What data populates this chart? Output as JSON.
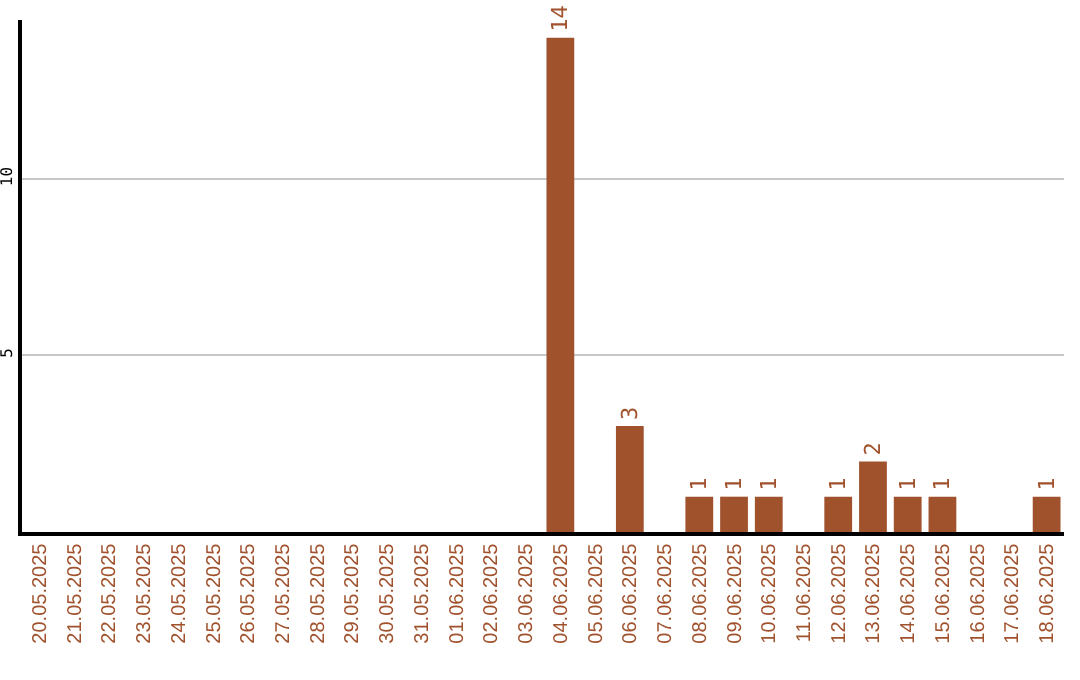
{
  "chart_data": {
    "type": "bar",
    "categories": [
      "20.05.2025",
      "21.05.2025",
      "22.05.2025",
      "23.05.2025",
      "24.05.2025",
      "25.05.2025",
      "26.05.2025",
      "27.05.2025",
      "28.05.2025",
      "29.05.2025",
      "30.05.2025",
      "31.05.2025",
      "01.06.2025",
      "02.06.2025",
      "03.06.2025",
      "04.06.2025",
      "05.06.2025",
      "06.06.2025",
      "07.06.2025",
      "08.06.2025",
      "09.06.2025",
      "10.06.2025",
      "11.06.2025",
      "12.06.2025",
      "13.06.2025",
      "14.06.2025",
      "15.06.2025",
      "16.06.2025",
      "17.06.2025",
      "18.06.2025"
    ],
    "values": [
      0,
      0,
      0,
      0,
      0,
      0,
      0,
      0,
      0,
      0,
      0,
      0,
      0,
      0,
      0,
      14,
      0,
      3,
      0,
      1,
      1,
      1,
      0,
      1,
      2,
      1,
      1,
      0,
      0,
      1
    ],
    "value_labels": [
      null,
      null,
      null,
      null,
      null,
      null,
      null,
      null,
      null,
      null,
      null,
      null,
      null,
      null,
      null,
      "14",
      null,
      "3",
      null,
      "1",
      "1",
      "1",
      null,
      "1",
      "2",
      "1",
      "1",
      null,
      null,
      "1"
    ],
    "color": "#a0522d",
    "ylim": [
      0,
      14.5
    ],
    "yticks": [
      5,
      10
    ],
    "grid": "y",
    "legend": false
  }
}
